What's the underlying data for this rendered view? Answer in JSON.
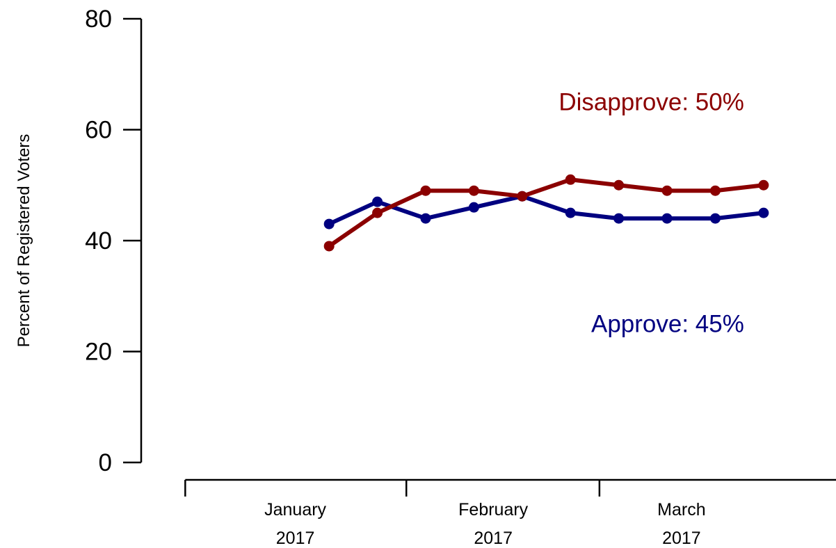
{
  "chart_data": {
    "type": "line",
    "title": "",
    "xlabel": "",
    "ylabel": "Percent of Registered Voters",
    "ylim": [
      0,
      80
    ],
    "yticks": [
      0,
      20,
      40,
      60,
      80
    ],
    "grid": false,
    "x": [
      1,
      2,
      3,
      4,
      5,
      6,
      7,
      8,
      9,
      10
    ],
    "xlim": [
      -2.1,
      11.5
    ],
    "month_ticks": [
      -1.98,
      2.6,
      6.6
    ],
    "months": [
      {
        "name": "January",
        "year": "2017",
        "pos": 0.3
      },
      {
        "name": "February",
        "year": "2017",
        "pos": 4.4
      },
      {
        "name": "March",
        "year": "2017",
        "pos": 8.3
      }
    ],
    "series": [
      {
        "name": "Approve",
        "color": "#000080",
        "values": [
          43,
          47,
          44,
          46,
          48,
          45,
          44,
          44,
          44,
          45
        ]
      },
      {
        "name": "Disapprove",
        "color": "#8B0000",
        "values": [
          39,
          45,
          49,
          49,
          48,
          51,
          50,
          49,
          49,
          50
        ]
      }
    ],
    "annotations": [
      {
        "series": "Disapprove",
        "text": "Disapprove: 50%",
        "color": "#8B0000",
        "x": 10,
        "y": 65
      },
      {
        "series": "Approve",
        "text": "Approve: 45%",
        "color": "#000080",
        "x": 10,
        "y": 25
      }
    ]
  }
}
